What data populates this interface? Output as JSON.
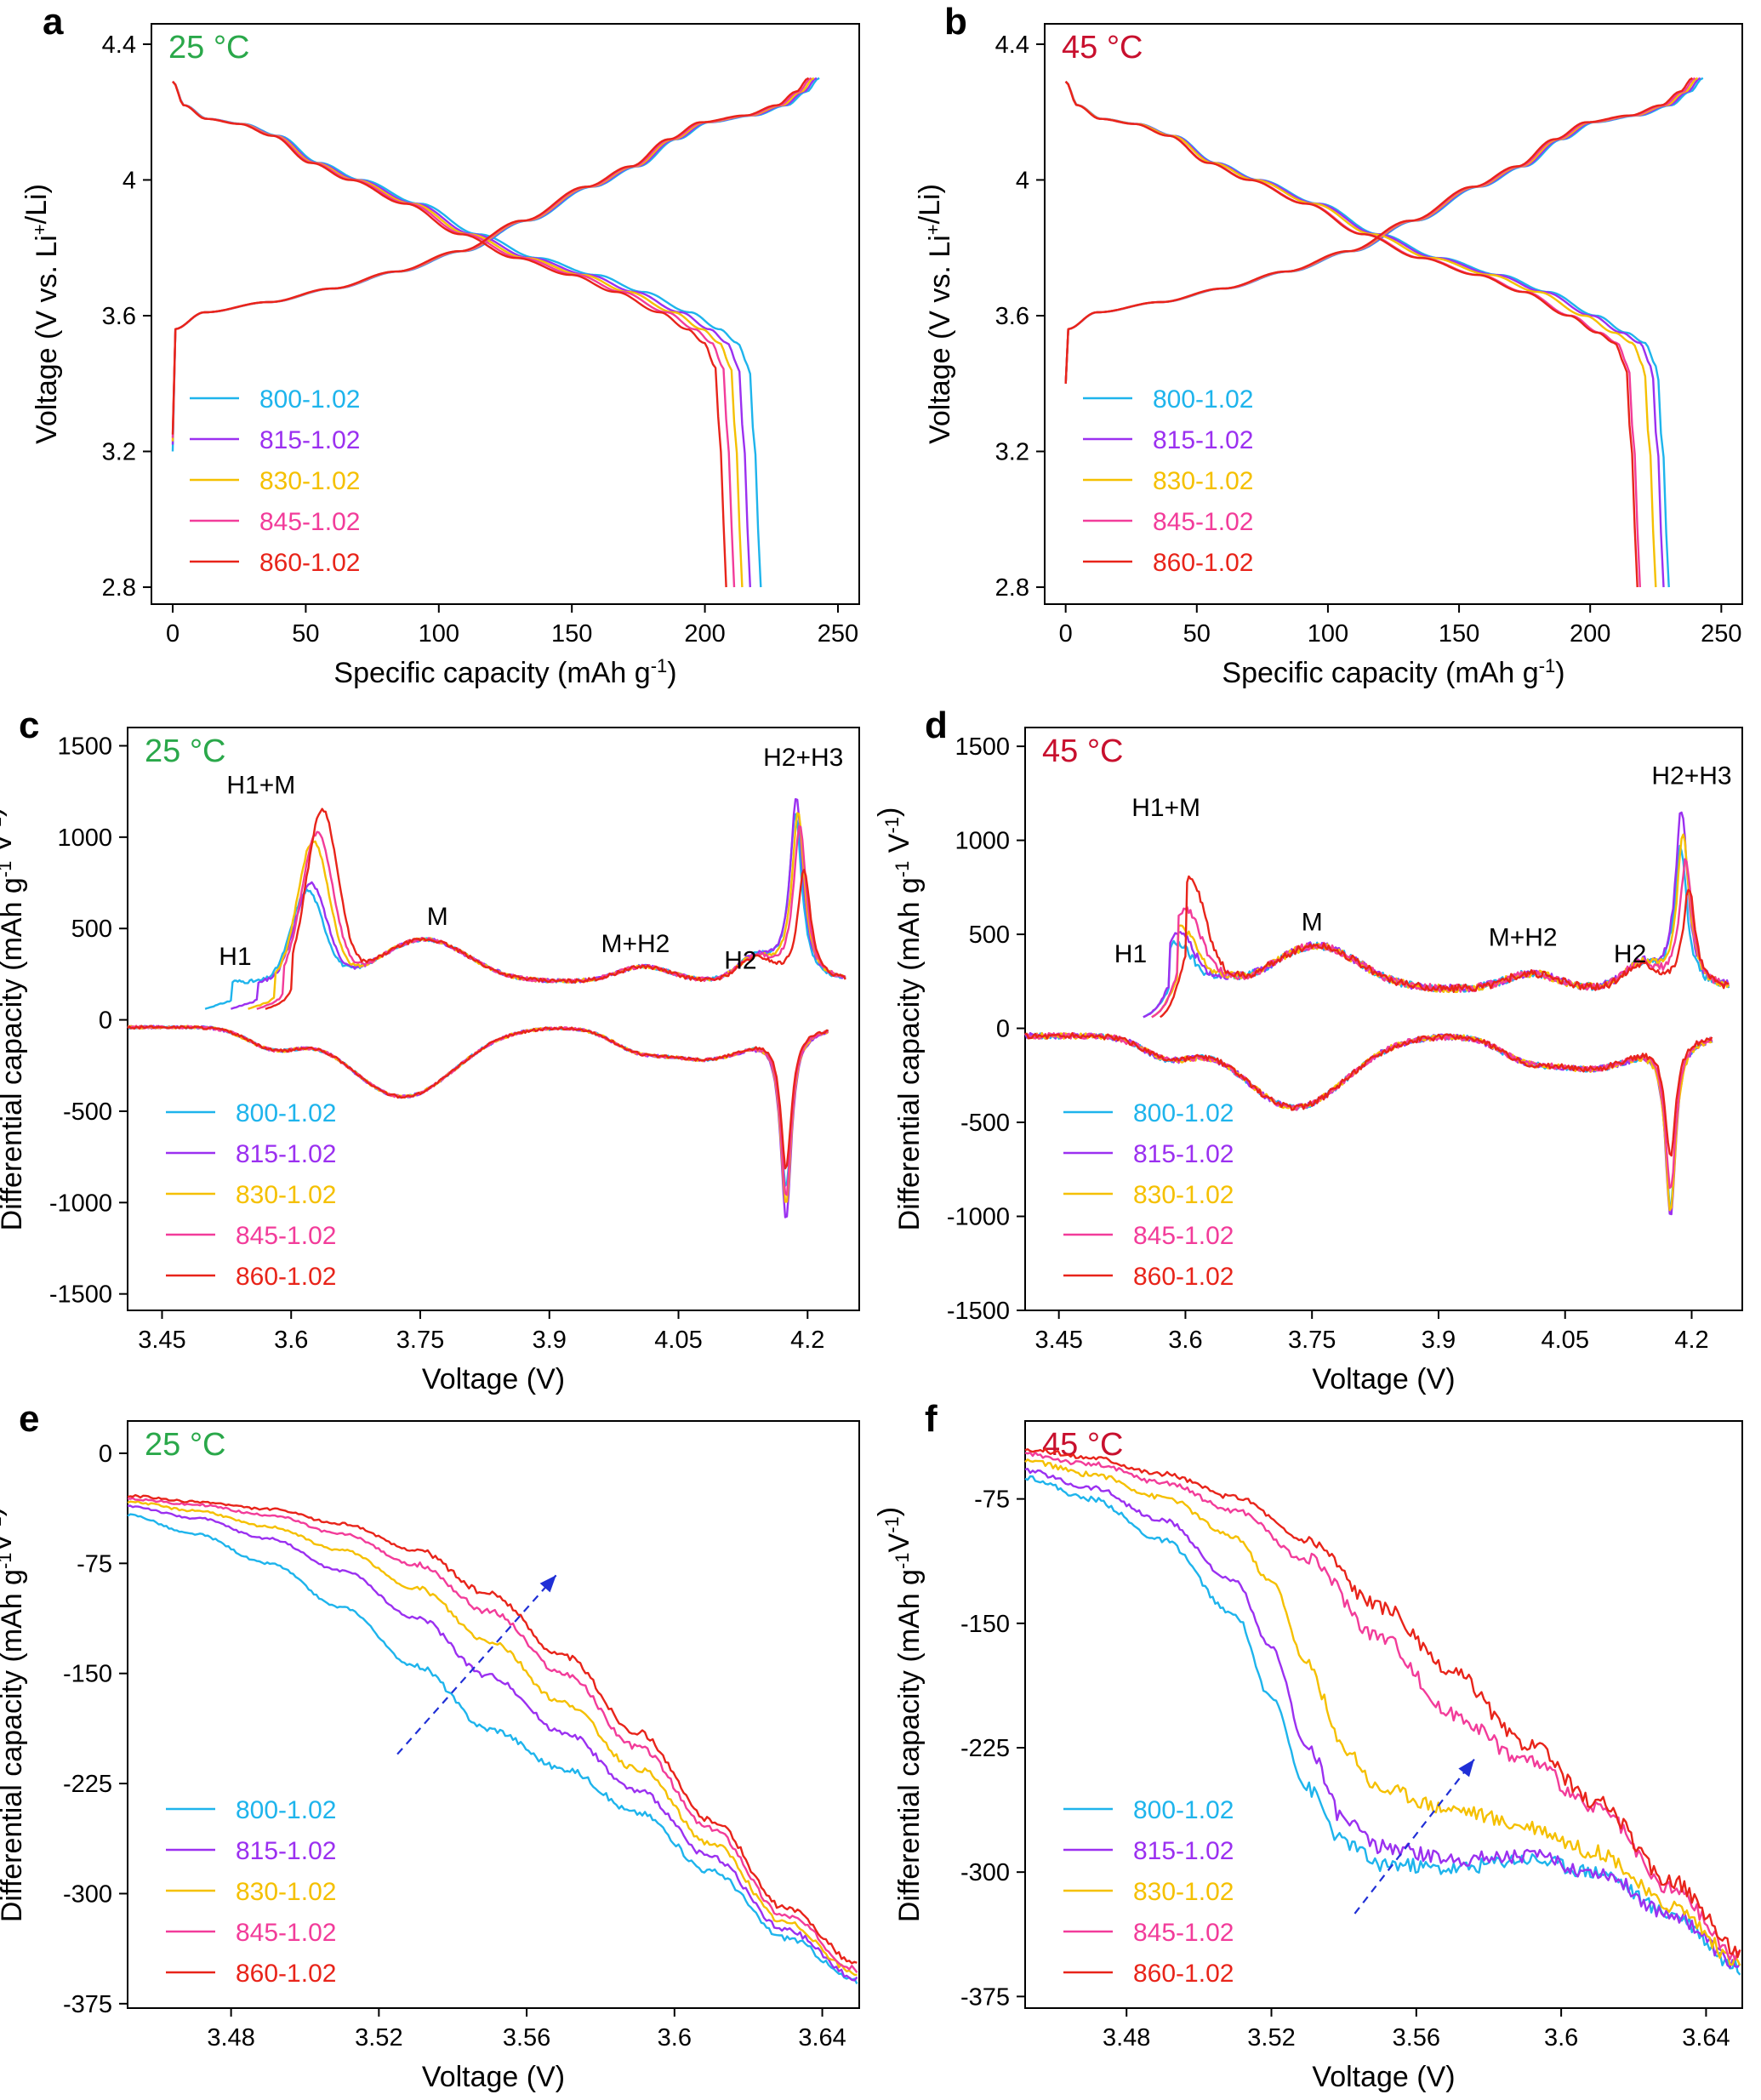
{
  "colors": {
    "800-1.02": "#1eb4ec",
    "815-1.02": "#9b30f0",
    "830-1.02": "#f5c000",
    "845-1.02": "#f23c9a",
    "860-1.02": "#e8241a",
    "temp25": "#2aa84a",
    "temp45": "#c8102e",
    "arrow": "#1f2fd6"
  },
  "chart_data": [
    {
      "panel": "a",
      "type": "line",
      "temperature": "25 °C",
      "xlabel": "Specific capacity (mAh g-1)",
      "ylabel": "Voltage (V vs. Li+/Li)",
      "xlim": [
        -8,
        258
      ],
      "ylim": [
        2.75,
        4.46
      ],
      "xticks": [
        0,
        50,
        100,
        150,
        200,
        250
      ],
      "yticks": [
        2.8,
        3.2,
        3.6,
        4,
        4.4
      ],
      "xtick_labels": [
        "0",
        "50",
        "100",
        "150",
        "200",
        "250"
      ],
      "ytick_labels": [
        "2.8",
        "3.2",
        "3.6",
        "4",
        "4.4"
      ],
      "legend": [
        "800-1.02",
        "815-1.02",
        "830-1.02",
        "845-1.02",
        "860-1.02"
      ],
      "series": [
        {
          "name": "800-1.02",
          "charge_end": 243,
          "discharge_end": 221,
          "start_v": 3.2
        },
        {
          "name": "815-1.02",
          "charge_end": 242,
          "discharge_end": 217,
          "start_v": 3.22
        },
        {
          "name": "830-1.02",
          "charge_end": 241,
          "discharge_end": 214,
          "start_v": 3.23
        },
        {
          "name": "845-1.02",
          "charge_end": 240,
          "discharge_end": 211,
          "start_v": 3.24
        },
        {
          "name": "860-1.02",
          "charge_end": 239,
          "discharge_end": 208,
          "start_v": 3.25
        }
      ]
    },
    {
      "panel": "b",
      "type": "line",
      "temperature": "45 °C",
      "xlabel": "Specific capacity (mAh g-1)",
      "ylabel": "Voltage (V vs. Li+/Li)",
      "xlim": [
        -8,
        258
      ],
      "ylim": [
        2.75,
        4.46
      ],
      "xticks": [
        0,
        50,
        100,
        150,
        200,
        250
      ],
      "yticks": [
        2.8,
        3.2,
        3.6,
        4,
        4.4
      ],
      "xtick_labels": [
        "0",
        "50",
        "100",
        "150",
        "200",
        "250"
      ],
      "ytick_labels": [
        "2.8",
        "3.2",
        "3.6",
        "4",
        "4.4"
      ],
      "legend": [
        "800-1.02",
        "815-1.02",
        "830-1.02",
        "845-1.02",
        "860-1.02"
      ],
      "series": [
        {
          "name": "800-1.02",
          "charge_end": 243,
          "discharge_end": 230,
          "start_v": 3.4
        },
        {
          "name": "815-1.02",
          "charge_end": 242,
          "discharge_end": 228,
          "start_v": 3.4
        },
        {
          "name": "830-1.02",
          "charge_end": 241,
          "discharge_end": 225,
          "start_v": 3.4
        },
        {
          "name": "845-1.02",
          "charge_end": 240,
          "discharge_end": 219,
          "start_v": 3.4
        },
        {
          "name": "860-1.02",
          "charge_end": 239,
          "discharge_end": 218,
          "start_v": 3.4
        }
      ]
    },
    {
      "panel": "c",
      "type": "line",
      "temperature": "25 °C",
      "xlabel": "Voltage (V)",
      "ylabel": "Differential capacity (mAh g-1 V-1)",
      "xlim": [
        3.41,
        4.26
      ],
      "ylim": [
        -1590,
        1600
      ],
      "xticks": [
        3.45,
        3.6,
        3.75,
        3.9,
        4.05,
        4.2
      ],
      "yticks": [
        -1500,
        -1000,
        -500,
        0,
        500,
        1000,
        1500
      ],
      "xtick_labels": [
        "3.45",
        "3.6",
        "3.75",
        "3.9",
        "4.05",
        "4.2"
      ],
      "ytick_labels": [
        "-1500",
        "-1000",
        "-500",
        "0",
        "500",
        "1000",
        "1500"
      ],
      "legend": [
        "800-1.02",
        "815-1.02",
        "830-1.02",
        "845-1.02",
        "860-1.02"
      ],
      "annotations": [
        "H1",
        "H1+M",
        "M",
        "M+H2",
        "H2",
        "H2+H3"
      ],
      "series": [
        {
          "name": "800-1.02",
          "h1m_peak": 850,
          "h1m_v": 3.618,
          "h2h3_peak": 1100,
          "h2h3_v": 4.186,
          "red_peak": -1050,
          "charge_start_v": 3.5
        },
        {
          "name": "815-1.02",
          "h1m_peak": 880,
          "h1m_v": 3.622,
          "h2h3_peak": 1200,
          "h2h3_v": 4.187,
          "red_peak": -1230,
          "charge_start_v": 3.53
        },
        {
          "name": "830-1.02",
          "h1m_peak": 1110,
          "h1m_v": 3.625,
          "h2h3_peak": 1120,
          "h2h3_v": 4.189,
          "red_peak": -1150,
          "charge_start_v": 3.55
        },
        {
          "name": "845-1.02",
          "h1m_peak": 1150,
          "h1m_v": 3.63,
          "h2h3_peak": 1050,
          "h2h3_v": 4.191,
          "red_peak": -1100,
          "charge_start_v": 3.56
        },
        {
          "name": "860-1.02",
          "h1m_peak": 1270,
          "h1m_v": 3.636,
          "h2h3_peak": 810,
          "h2h3_v": 4.196,
          "red_peak": -950,
          "charge_start_v": 3.57
        }
      ]
    },
    {
      "panel": "d",
      "type": "line",
      "temperature": "45 °C",
      "xlabel": "Voltage (V)",
      "ylabel": "Differential capacity (mAh g-1 V-1)",
      "xlim": [
        3.41,
        4.26
      ],
      "ylim": [
        -1500,
        1600
      ],
      "xticks": [
        3.45,
        3.6,
        3.75,
        3.9,
        4.05,
        4.2
      ],
      "yticks": [
        -1500,
        -1000,
        -500,
        0,
        500,
        1000,
        1500
      ],
      "xtick_labels": [
        "3.45",
        "3.6",
        "3.75",
        "3.9",
        "4.05",
        "4.2"
      ],
      "ytick_labels": [
        "-1500",
        "-1000",
        "-500",
        "0",
        "500",
        "1000",
        "1500"
      ],
      "legend": [
        "800-1.02",
        "815-1.02",
        "830-1.02",
        "845-1.02",
        "860-1.02"
      ],
      "annotations": [
        "H1",
        "H1+M",
        "M",
        "M+H2",
        "H2",
        "H2+H3"
      ],
      "series": [
        {
          "name": "800-1.02",
          "h1m_peak": 620,
          "h1m_v": 3.59,
          "h2h3_peak": 950,
          "h2h3_v": 4.187,
          "red_peak": -1080,
          "charge_start_v": 3.55
        },
        {
          "name": "815-1.02",
          "h1m_peak": 680,
          "h1m_v": 3.592,
          "h2h3_peak": 1150,
          "h2h3_v": 4.188,
          "red_peak": -1130,
          "charge_start_v": 3.55
        },
        {
          "name": "830-1.02",
          "h1m_peak": 700,
          "h1m_v": 3.595,
          "h2h3_peak": 1020,
          "h2h3_v": 4.19,
          "red_peak": -1100,
          "charge_start_v": 3.56
        },
        {
          "name": "845-1.02",
          "h1m_peak": 800,
          "h1m_v": 3.6,
          "h2h3_peak": 880,
          "h2h3_v": 4.193,
          "red_peak": -1000,
          "charge_start_v": 3.56
        },
        {
          "name": "860-1.02",
          "h1m_peak": 950,
          "h1m_v": 3.605,
          "h2h3_peak": 730,
          "h2h3_v": 4.197,
          "red_peak": -820,
          "charge_start_v": 3.57
        }
      ]
    },
    {
      "panel": "e",
      "type": "line",
      "temperature": "25 °C",
      "xlabel": "Voltage (V)",
      "ylabel": "Differential capacity (mAh g-1V-1)",
      "xlim": [
        3.452,
        3.65
      ],
      "ylim": [
        -378,
        22
      ],
      "xticks": [
        3.48,
        3.52,
        3.56,
        3.6,
        3.64
      ],
      "yticks": [
        -375,
        -300,
        -225,
        -150,
        -75,
        0
      ],
      "xtick_labels": [
        "3.48",
        "3.52",
        "3.56",
        "3.6",
        "3.64"
      ],
      "ytick_labels": [
        "-375",
        "-300",
        "-225",
        "-150",
        "-75",
        "0"
      ],
      "legend": [
        "800-1.02",
        "815-1.02",
        "830-1.02",
        "845-1.02",
        "860-1.02"
      ],
      "series": [
        {
          "name": "800-1.02",
          "points": [
            [
              3.452,
              -42
            ],
            [
              3.47,
              -55
            ],
            [
              3.49,
              -75
            ],
            [
              3.51,
              -105
            ],
            [
              3.53,
              -145
            ],
            [
              3.55,
              -188
            ],
            [
              3.57,
              -215
            ],
            [
              3.59,
              -245
            ],
            [
              3.61,
              -285
            ],
            [
              3.63,
              -330
            ],
            [
              3.65,
              -360
            ]
          ]
        },
        {
          "name": "815-1.02",
          "points": [
            [
              3.452,
              -36
            ],
            [
              3.47,
              -44
            ],
            [
              3.49,
              -58
            ],
            [
              3.51,
              -80
            ],
            [
              3.53,
              -112
            ],
            [
              3.55,
              -152
            ],
            [
              3.57,
              -190
            ],
            [
              3.59,
              -230
            ],
            [
              3.61,
              -275
            ],
            [
              3.63,
              -325
            ],
            [
              3.65,
              -358
            ]
          ]
        },
        {
          "name": "830-1.02",
          "points": [
            [
              3.452,
              -33
            ],
            [
              3.47,
              -39
            ],
            [
              3.49,
              -50
            ],
            [
              3.51,
              -66
            ],
            [
              3.53,
              -92
            ],
            [
              3.55,
              -128
            ],
            [
              3.57,
              -170
            ],
            [
              3.59,
              -215
            ],
            [
              3.61,
              -266
            ],
            [
              3.63,
              -320
            ],
            [
              3.65,
              -355
            ]
          ]
        },
        {
          "name": "845-1.02",
          "points": [
            [
              3.452,
              -31
            ],
            [
              3.47,
              -35
            ],
            [
              3.49,
              -42
            ],
            [
              3.51,
              -55
            ],
            [
              3.53,
              -76
            ],
            [
              3.55,
              -108
            ],
            [
              3.57,
              -150
            ],
            [
              3.59,
              -200
            ],
            [
              3.61,
              -256
            ],
            [
              3.63,
              -315
            ],
            [
              3.65,
              -352
            ]
          ]
        },
        {
          "name": "860-1.02",
          "points": [
            [
              3.452,
              -29
            ],
            [
              3.47,
              -33
            ],
            [
              3.49,
              -38
            ],
            [
              3.51,
              -48
            ],
            [
              3.53,
              -66
            ],
            [
              3.55,
              -96
            ],
            [
              3.57,
              -138
            ],
            [
              3.59,
              -190
            ],
            [
              3.61,
              -250
            ],
            [
              3.63,
              -310
            ],
            [
              3.65,
              -348
            ]
          ]
        }
      ]
    },
    {
      "panel": "f",
      "type": "line",
      "temperature": "45 °C",
      "xlabel": "Voltage (V)",
      "ylabel": "Differential capacity (mAh g-1V-1)",
      "xlim": [
        3.452,
        3.65
      ],
      "ylim": [
        -382,
        -28
      ],
      "xticks": [
        3.48,
        3.52,
        3.56,
        3.6,
        3.64
      ],
      "yticks": [
        -375,
        -300,
        -225,
        -150,
        -75
      ],
      "xtick_labels": [
        "3.48",
        "3.52",
        "3.56",
        "3.6",
        "3.64"
      ],
      "ytick_labels": [
        "-375",
        "-300",
        "-225",
        "-150",
        "-75"
      ],
      "legend": [
        "800-1.02",
        "815-1.02",
        "830-1.02",
        "845-1.02",
        "860-1.02"
      ],
      "series": [
        {
          "name": "800-1.02",
          "points": [
            [
              3.452,
              -62
            ],
            [
              3.47,
              -75
            ],
            [
              3.49,
              -100
            ],
            [
              3.51,
              -145
            ],
            [
              3.52,
              -195
            ],
            [
              3.53,
              -250
            ],
            [
              3.54,
              -282
            ],
            [
              3.55,
              -295
            ],
            [
              3.57,
              -298
            ],
            [
              3.59,
              -292
            ],
            [
              3.61,
              -300
            ],
            [
              3.63,
              -325
            ],
            [
              3.65,
              -358
            ]
          ]
        },
        {
          "name": "815-1.02",
          "points": [
            [
              3.452,
              -58
            ],
            [
              3.47,
              -68
            ],
            [
              3.49,
              -88
            ],
            [
              3.51,
              -125
            ],
            [
              3.52,
              -165
            ],
            [
              3.53,
              -225
            ],
            [
              3.54,
              -268
            ],
            [
              3.55,
              -285
            ],
            [
              3.57,
              -292
            ],
            [
              3.59,
              -290
            ],
            [
              3.61,
              -300
            ],
            [
              3.63,
              -325
            ],
            [
              3.65,
              -357
            ]
          ]
        },
        {
          "name": "830-1.02",
          "points": [
            [
              3.452,
              -52
            ],
            [
              3.47,
              -60
            ],
            [
              3.49,
              -74
            ],
            [
              3.51,
              -98
            ],
            [
              3.52,
              -125
            ],
            [
              3.53,
              -175
            ],
            [
              3.54,
              -225
            ],
            [
              3.55,
              -250
            ],
            [
              3.57,
              -262
            ],
            [
              3.59,
              -272
            ],
            [
              3.61,
              -288
            ],
            [
              3.63,
              -320
            ],
            [
              3.65,
              -355
            ]
          ]
        },
        {
          "name": "845-1.02",
          "points": [
            [
              3.452,
              -48
            ],
            [
              3.47,
              -54
            ],
            [
              3.49,
              -65
            ],
            [
              3.51,
              -82
            ],
            [
              3.53,
              -112
            ],
            [
              3.55,
              -158
            ],
            [
              3.57,
              -205
            ],
            [
              3.59,
              -232
            ],
            [
              3.61,
              -262
            ],
            [
              3.63,
              -310
            ],
            [
              3.65,
              -352
            ]
          ]
        },
        {
          "name": "860-1.02",
          "points": [
            [
              3.452,
              -45
            ],
            [
              3.47,
              -50
            ],
            [
              3.49,
              -60
            ],
            [
              3.51,
              -74
            ],
            [
              3.53,
              -100
            ],
            [
              3.55,
              -140
            ],
            [
              3.57,
              -180
            ],
            [
              3.59,
              -222
            ],
            [
              3.61,
              -258
            ],
            [
              3.63,
              -305
            ],
            [
              3.65,
              -348
            ]
          ]
        }
      ]
    }
  ]
}
